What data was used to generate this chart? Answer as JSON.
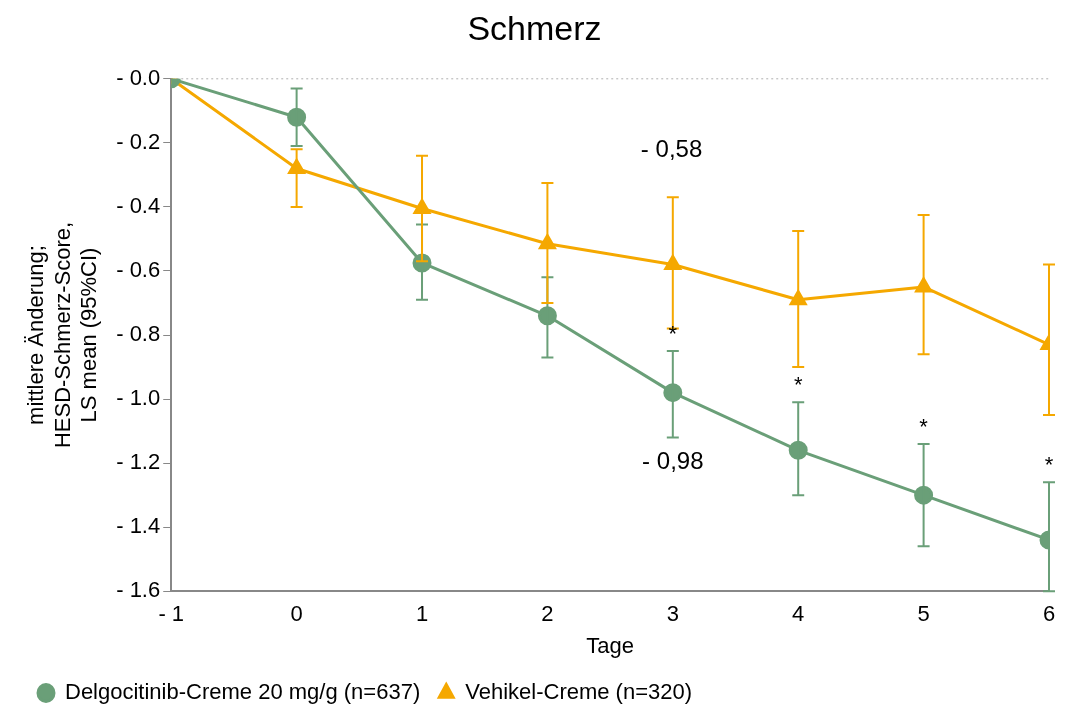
{
  "chart_data": {
    "type": "line",
    "title": "Schmerz",
    "xlabel": "Tage",
    "ylabel": [
      "mittlere Änderung;",
      "HESD-Schmerz-Score,",
      "LS mean (95%CI)"
    ],
    "x": [
      -1,
      0,
      1,
      2,
      3,
      4,
      5,
      6
    ],
    "xlim": [
      -1,
      6
    ],
    "xticks": [
      {
        "value": -1,
        "label": "- 1"
      },
      0,
      1,
      2,
      3,
      4,
      5,
      6
    ],
    "ylim": [
      -1.6,
      0
    ],
    "yticks": [
      {
        "value": 0,
        "label": "- 0.0"
      },
      {
        "value": -0.2,
        "label": "- 0.2"
      },
      {
        "value": -0.4,
        "label": "- 0.4"
      },
      {
        "value": -0.6,
        "label": "- 0.6"
      },
      {
        "value": -0.8,
        "label": "- 0.8"
      },
      {
        "value": -1,
        "label": "- 1.0"
      },
      {
        "value": -1.2,
        "label": "- 1.2"
      },
      {
        "value": -1.4,
        "label": "- 1.4"
      },
      {
        "value": -1.6,
        "label": "- 1.6"
      }
    ],
    "grid": false,
    "legend": "bottom left",
    "line_style": "solid",
    "ref_lines": [
      {
        "axis": "y",
        "value": 0,
        "color": "#b0b0b0",
        "line_style": "dotted"
      }
    ],
    "series": [
      {
        "name": "Delgocitinib-Creme 20 mg/g (n=637)",
        "color": "#6a9f78",
        "marker": "circle",
        "values": [
          0,
          -0.12,
          -0.575,
          -0.74,
          -0.98,
          -1.16,
          -1.3,
          -1.44
        ],
        "errors": [
          null,
          [
            -0.21,
            -0.03
          ],
          [
            -0.69,
            -0.455
          ],
          [
            -0.87,
            -0.62
          ],
          [
            -1.12,
            -0.85
          ],
          [
            -1.3,
            -1.01
          ],
          [
            -1.46,
            -1.14
          ],
          [
            -1.6,
            -1.26
          ]
        ]
      },
      {
        "name": "Vehikel-Creme (n=320)",
        "color": "#f5a800",
        "marker": "triangle",
        "values": [
          0,
          -0.28,
          -0.405,
          -0.515,
          -0.58,
          -0.69,
          -0.65,
          -0.83
        ],
        "errors": [
          null,
          [
            -0.4,
            -0.22
          ],
          [
            -0.57,
            -0.24
          ],
          [
            -0.7,
            -0.325
          ],
          [
            -0.78,
            -0.37
          ],
          [
            -0.9,
            -0.475
          ],
          [
            -0.86,
            -0.425
          ],
          [
            -1.05,
            -0.58
          ]
        ]
      }
    ],
    "annotations": [
      "- 0,58",
      {
        "text": "- 0,98",
        "x": 3,
        "y": -0.98
      },
      {
        "text": "*",
        "x": 3,
        "y": -0.85
      },
      {
        "text": "*",
        "x": 4,
        "y": -1.01
      },
      {
        "text": "*",
        "x": 5,
        "y": -1.14
      },
      {
        "text": "*",
        "x": 6,
        "y": -1.26
      }
    ]
  }
}
